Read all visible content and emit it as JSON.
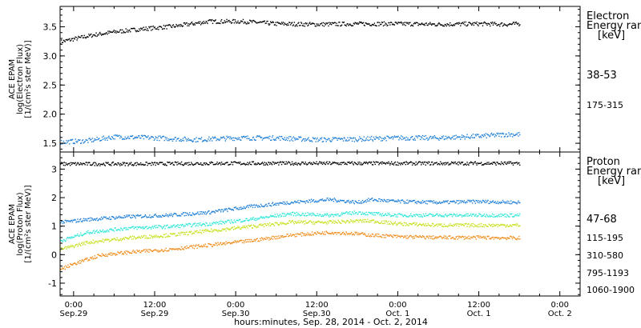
{
  "x_axis": {
    "title": "hours:minutes, Sep. 28, 2014 - Oct. 2, 2014",
    "ticks": [
      {
        "time": "0:00",
        "date": "Sep.29",
        "hours": 0
      },
      {
        "time": "12:00",
        "date": "Sep.29",
        "hours": 12
      },
      {
        "time": "0:00",
        "date": "Sep.30",
        "hours": 24
      },
      {
        "time": "12:00",
        "date": "Sep.30",
        "hours": 36
      },
      {
        "time": "0:00",
        "date": "Oct. 1",
        "hours": 48
      },
      {
        "time": "12:00",
        "date": "Oct. 1",
        "hours": 60
      },
      {
        "time": "0:00",
        "date": "Oct. 2",
        "hours": 72
      }
    ],
    "range_hours_from_sep29": [
      -2,
      75
    ]
  },
  "chart_data": [
    {
      "type": "scatter",
      "name": "electron-panel",
      "ylabel_lines": [
        "ACE EPAM",
        "log(Electron Flux)",
        "[1/(cm²s ster MeV)]"
      ],
      "ylim": [
        1.35,
        3.85
      ],
      "yticks": [
        "1.5",
        "2.0",
        "2.5",
        "3.0",
        "3.5"
      ],
      "legend_title": [
        "Electron",
        "Energy ran",
        "[keV]"
      ],
      "series": [
        {
          "name": "38-53",
          "color": "#000000",
          "x": [
            -2,
            0,
            3,
            6,
            10,
            15,
            20,
            25,
            30,
            36,
            42,
            48,
            54,
            60,
            64,
            66
          ],
          "values": [
            3.25,
            3.3,
            3.37,
            3.42,
            3.47,
            3.52,
            3.6,
            3.6,
            3.56,
            3.55,
            3.56,
            3.56,
            3.55,
            3.56,
            3.55,
            3.56
          ]
        },
        {
          "name": "175-315",
          "color": "#1f7fd6",
          "x": [
            -2,
            2,
            6,
            12,
            18,
            24,
            30,
            36,
            42,
            48,
            54,
            60,
            64,
            66
          ],
          "values": [
            1.53,
            1.55,
            1.62,
            1.6,
            1.57,
            1.6,
            1.6,
            1.57,
            1.58,
            1.6,
            1.6,
            1.63,
            1.66,
            1.66
          ]
        }
      ]
    },
    {
      "type": "scatter",
      "name": "proton-panel",
      "ylabel_lines": [
        "ACE EPAM",
        "log(Proton Flux)",
        "[1/(cm²s ster MeV)]"
      ],
      "ylim": [
        -1.45,
        3.6
      ],
      "yticks": [
        "-1",
        "0",
        "1",
        "2",
        "3"
      ],
      "legend_title": [
        "Proton",
        "Energy ran",
        "[keV]"
      ],
      "series": [
        {
          "name": "47-68",
          "color": "#000000",
          "x": [
            -2,
            10,
            20,
            30,
            40,
            50,
            60,
            66
          ],
          "values": [
            3.2,
            3.2,
            3.22,
            3.22,
            3.22,
            3.22,
            3.22,
            3.22
          ]
        },
        {
          "name": "115-195",
          "color": "#1f7fd6",
          "x": [
            -2,
            2,
            8,
            14,
            20,
            26,
            32,
            38,
            42,
            44,
            48,
            54,
            60,
            66
          ],
          "values": [
            1.15,
            1.25,
            1.35,
            1.4,
            1.5,
            1.7,
            1.85,
            1.95,
            1.85,
            1.95,
            1.88,
            1.85,
            1.88,
            1.85
          ]
        },
        {
          "name": "310-580",
          "color": "#2ee6d8",
          "x": [
            -2,
            2,
            8,
            14,
            20,
            26,
            32,
            38,
            42,
            44,
            48,
            54,
            60,
            66
          ],
          "values": [
            0.5,
            0.8,
            0.95,
            1.0,
            1.1,
            1.25,
            1.45,
            1.4,
            1.5,
            1.45,
            1.4,
            1.4,
            1.4,
            1.4
          ]
        },
        {
          "name": "795-1193",
          "color": "#c8e020",
          "x": [
            -2,
            2,
            8,
            14,
            20,
            26,
            32,
            38,
            42,
            44,
            48,
            54,
            60,
            66
          ],
          "values": [
            0.2,
            0.45,
            0.6,
            0.7,
            0.85,
            1.0,
            1.15,
            1.15,
            1.2,
            1.2,
            1.1,
            1.05,
            1.05,
            1.05
          ]
        },
        {
          "name": "1060-1900",
          "color": "#f08c1a",
          "x": [
            -2,
            0,
            4,
            8,
            14,
            20,
            26,
            32,
            38,
            42,
            44,
            48,
            54,
            60,
            66
          ],
          "values": [
            -0.5,
            -0.3,
            0.0,
            0.1,
            0.2,
            0.35,
            0.5,
            0.7,
            0.8,
            0.75,
            0.7,
            0.65,
            0.62,
            0.62,
            0.6
          ]
        }
      ]
    }
  ]
}
